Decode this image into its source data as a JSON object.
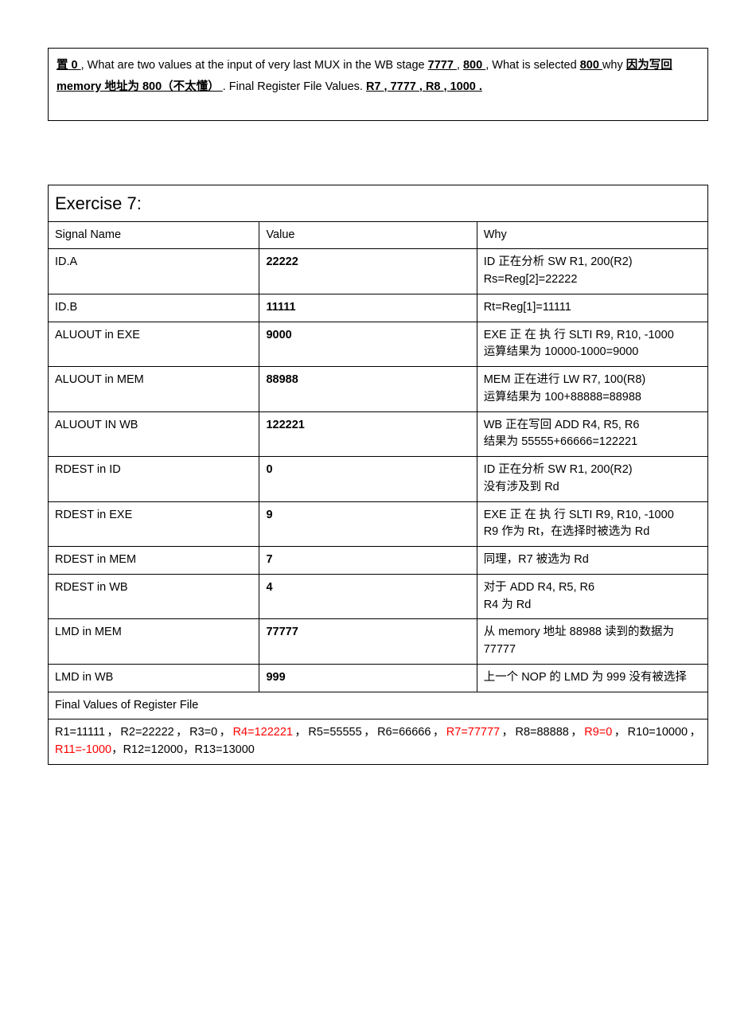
{
  "top": {
    "seg1": "置 0   ",
    "seg2": ", What are two values at the input of very last MUX in the WB stage ",
    "seg3": "  7777  ",
    "seg4": ", ",
    "seg5": "  800  ",
    "seg6": ", What is selected ",
    "seg7": "800  ",
    "seg8": " why ",
    "seg9": "   因为写回 memory 地址为 800（不太懂）   ",
    "seg10": ". Final Register File Values. ",
    "seg11": " R7  ",
    "seg12": " , ",
    "seg13": "  7777  ",
    "seg14": " , ",
    "seg15": "  R8  ",
    "seg16": " , ",
    "seg17": "1000  ."
  },
  "exercise": {
    "title": "Exercise 7:",
    "headers": {
      "c1": "Signal Name",
      "c2": "Value",
      "c3": "Why"
    },
    "rows": [
      {
        "sig": "ID.A",
        "val": "22222",
        "why": "ID 正在分析 SW R1, 200(R2)\nRs=Reg[2]=22222"
      },
      {
        "sig": "ID.B",
        "val": "11111",
        "why": "Rt=Reg[1]=11111"
      },
      {
        "sig": "ALUOUT in EXE",
        "val": "9000",
        "why": "EXE 正 在 执 行 SLTI R9, R10, -1000\n运算结果为 10000-1000=9000"
      },
      {
        "sig": "ALUOUT in MEM",
        "val": "88988",
        "why": "MEM 正在进行 LW R7, 100(R8)\n运算结果为 100+88888=88988"
      },
      {
        "sig": "ALUOUT IN WB",
        "val": "122221",
        "why": "WB 正在写回 ADD R4, R5, R6\n结果为 55555+66666=122221"
      },
      {
        "sig": "RDEST in ID",
        "val": "0",
        "why": "ID 正在分析 SW R1, 200(R2)\n没有涉及到 Rd"
      },
      {
        "sig": "RDEST in EXE",
        "val": "9",
        "why": "EXE 正 在 执 行 SLTI R9, R10, -1000\nR9 作为 Rt，在选择时被选为 Rd"
      },
      {
        "sig": "RDEST in MEM",
        "val": "7",
        "why": "同理，R7 被选为 Rd"
      },
      {
        "sig": "RDEST in WB",
        "val": "4",
        "why": "对于 ADD R4, R5, R6\nR4 为 Rd"
      },
      {
        "sig": "LMD in MEM",
        "val": "77777",
        "why": "从 memory 地址 88988 读到的数据为 77777"
      },
      {
        "sig": "LMD in WB",
        "val": "999",
        "why": "上一个 NOP 的 LMD 为 999 没有被选择"
      }
    ],
    "final_label": "Final Values of Register File",
    "final_values": {
      "p1": "R1=11111，R2=22222，R3=0，",
      "r4": "R4=122221",
      "p2": "，R5=55555，R6=66666，",
      "r7": "R7=77777",
      "p3": "，R8=88888，",
      "r9": "R9=0",
      "p4": "，R10=10000，",
      "r11": "R11=-1000",
      "p5": "，R12=12000，R13=13000"
    }
  }
}
